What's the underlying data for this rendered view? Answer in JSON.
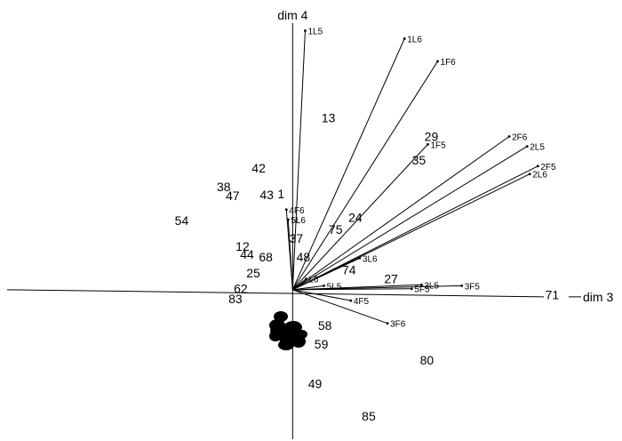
{
  "chart_data": {
    "type": "scatter",
    "title": "",
    "xlabel": "dim 3",
    "ylabel": "dim 4",
    "xlim": [
      -3.27,
      3.68
    ],
    "ylim": [
      -1.53,
      2.93
    ],
    "grid": false,
    "legend": "none",
    "vectors": [
      {
        "label": "1L5",
        "x": 0.14,
        "y": 2.62
      },
      {
        "label": "1L6",
        "x": 1.25,
        "y": 2.54
      },
      {
        "label": "1F6",
        "x": 1.62,
        "y": 2.31
      },
      {
        "label": "2F6",
        "x": 2.42,
        "y": 1.55
      },
      {
        "label": "2L5",
        "x": 2.62,
        "y": 1.45
      },
      {
        "label": "2F5",
        "x": 2.74,
        "y": 1.25
      },
      {
        "label": "2L6",
        "x": 2.65,
        "y": 1.17
      },
      {
        "label": "1F5",
        "x": 1.51,
        "y": 1.47
      },
      {
        "label": "4F6",
        "x": -0.07,
        "y": 0.81
      },
      {
        "label": "5L6",
        "x": -0.05,
        "y": 0.71
      },
      {
        "label": "3L6",
        "x": 0.75,
        "y": 0.32
      },
      {
        "label": "3L5",
        "x": 1.44,
        "y": 0.05
      },
      {
        "label": "3F5",
        "x": 1.89,
        "y": 0.04
      },
      {
        "label": "5F5",
        "x": 1.33,
        "y": 0.01
      },
      {
        "label": "L6",
        "x": 0.15,
        "y": 0.11
      },
      {
        "label": "5L5",
        "x": 0.35,
        "y": 0.04
      },
      {
        "label": "4F5",
        "x": 0.65,
        "y": -0.11
      },
      {
        "label": "3F6",
        "x": 1.06,
        "y": -0.34
      }
    ],
    "points": [
      {
        "label": "71",
        "x": 2.9,
        "y": -0.05
      },
      {
        "label": "13",
        "x": 0.4,
        "y": 1.74
      },
      {
        "label": "29",
        "x": 1.55,
        "y": 1.55
      },
      {
        "label": "35",
        "x": 1.41,
        "y": 1.31
      },
      {
        "label": "42",
        "x": -0.38,
        "y": 1.23
      },
      {
        "label": "38",
        "x": -0.77,
        "y": 1.04
      },
      {
        "label": "47",
        "x": -0.67,
        "y": 0.95
      },
      {
        "label": "43",
        "x": -0.29,
        "y": 0.96
      },
      {
        "label": "1",
        "x": -0.13,
        "y": 0.97
      },
      {
        "label": "54",
        "x": -1.24,
        "y": 0.7
      },
      {
        "label": "24",
        "x": 0.7,
        "y": 0.73
      },
      {
        "label": "75",
        "x": 0.48,
        "y": 0.61
      },
      {
        "label": "37",
        "x": 0.04,
        "y": 0.52
      },
      {
        "label": "12",
        "x": -0.56,
        "y": 0.44
      },
      {
        "label": "44",
        "x": -0.51,
        "y": 0.36
      },
      {
        "label": "68",
        "x": -0.3,
        "y": 0.33
      },
      {
        "label": "48",
        "x": 0.12,
        "y": 0.33
      },
      {
        "label": "74",
        "x": 0.63,
        "y": 0.2
      },
      {
        "label": "25",
        "x": -0.44,
        "y": 0.17
      },
      {
        "label": "27",
        "x": 1.1,
        "y": 0.11
      },
      {
        "label": "62",
        "x": -0.58,
        "y": 0.01
      },
      {
        "label": "83",
        "x": -0.64,
        "y": -0.09
      },
      {
        "label": "58",
        "x": 0.36,
        "y": -0.36
      },
      {
        "label": "59",
        "x": 0.32,
        "y": -0.55
      },
      {
        "label": "80",
        "x": 1.5,
        "y": -0.71
      },
      {
        "label": "49",
        "x": 0.25,
        "y": -0.95
      },
      {
        "label": "85",
        "x": 0.85,
        "y": -1.28
      }
    ]
  }
}
